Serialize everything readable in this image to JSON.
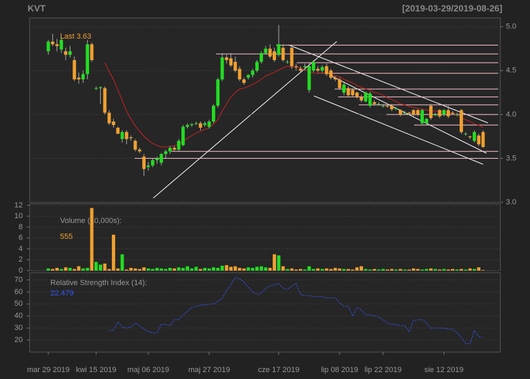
{
  "chart_data": [
    {
      "type": "candlestick",
      "title": "KVT",
      "subtitle": "[2019-03-29/2019-08-26]",
      "annotation": "Last 3.63",
      "up_color": "#22dd22",
      "down_color": "#f0a030",
      "open": [
        4.72,
        4.83,
        4.8,
        4.74,
        4.72,
        4.68,
        4.62,
        4.42,
        4.4,
        4.46,
        4.8,
        4.3,
        4.3,
        4.3,
        4.02,
        3.92,
        3.85,
        3.72,
        3.8,
        3.74,
        3.7,
        3.6,
        3.52,
        3.4,
        3.42,
        3.48,
        3.45,
        3.55,
        3.58,
        3.62,
        3.6,
        3.65,
        3.86,
        3.88,
        3.9,
        3.9,
        3.88,
        3.86,
        3.92,
        4.1,
        4.4,
        4.65,
        4.64,
        4.6,
        4.52,
        4.4,
        4.42,
        4.45,
        4.5,
        4.6,
        4.7,
        4.75,
        4.72,
        4.68,
        4.76,
        4.6,
        4.76,
        4.55,
        4.52,
        4.54,
        4.28,
        4.5,
        4.52,
        4.5,
        4.55,
        4.5,
        4.42,
        4.4,
        4.25,
        4.3,
        4.28,
        4.25,
        4.2,
        4.15,
        4.1,
        4.14,
        4.12,
        4.1,
        4.1,
        4.1,
        4.07,
        4.05,
        4.02,
        4.02,
        4.05,
        4.05,
        3.9,
        3.9,
        4.1,
        4.0,
        4.05,
        4.0,
        4.05,
        4.02,
        4.0,
        4.05,
        3.78,
        3.75,
        3.7,
        3.76,
        3.8
      ],
      "high": [
        4.85,
        4.92,
        4.86,
        4.88,
        4.76,
        4.78,
        4.66,
        4.48,
        4.5,
        4.85,
        4.82,
        4.32,
        4.32,
        4.32,
        4.05,
        3.95,
        3.86,
        3.82,
        3.82,
        3.76,
        3.72,
        3.62,
        3.55,
        3.46,
        3.5,
        3.52,
        3.56,
        3.6,
        3.64,
        3.64,
        3.72,
        3.88,
        3.9,
        3.9,
        3.92,
        3.92,
        3.92,
        3.94,
        4.12,
        4.42,
        4.7,
        4.68,
        4.7,
        4.66,
        4.55,
        4.42,
        4.46,
        4.52,
        4.62,
        4.72,
        4.78,
        4.8,
        4.76,
        5.02,
        4.8,
        4.62,
        4.78,
        4.58,
        4.55,
        4.58,
        4.58,
        4.62,
        4.55,
        4.56,
        4.58,
        4.52,
        4.44,
        4.42,
        4.36,
        4.32,
        4.3,
        4.26,
        4.22,
        4.26,
        4.26,
        4.16,
        4.14,
        4.12,
        4.12,
        4.12,
        4.08,
        4.06,
        4.04,
        4.03,
        4.06,
        4.06,
        4.06,
        3.96,
        4.12,
        4.02,
        4.06,
        4.06,
        4.1,
        4.04,
        4.02,
        4.06,
        3.8,
        3.76,
        3.82,
        3.78,
        3.82
      ],
      "low": [
        4.68,
        4.78,
        4.72,
        4.7,
        4.62,
        4.65,
        4.38,
        4.35,
        4.36,
        4.4,
        4.6,
        4.28,
        4.12,
        4.0,
        3.88,
        3.85,
        3.78,
        3.68,
        3.66,
        3.7,
        3.58,
        3.56,
        3.3,
        3.36,
        3.4,
        3.44,
        3.42,
        3.5,
        3.55,
        3.58,
        3.58,
        3.64,
        3.84,
        3.86,
        3.88,
        3.82,
        3.86,
        3.84,
        3.9,
        4.08,
        4.38,
        4.58,
        4.54,
        4.48,
        4.38,
        4.34,
        4.4,
        4.42,
        4.48,
        4.58,
        4.68,
        4.64,
        4.6,
        4.66,
        4.6,
        4.58,
        4.52,
        4.5,
        4.48,
        4.5,
        4.25,
        4.48,
        4.48,
        4.48,
        4.44,
        4.4,
        4.38,
        4.28,
        4.22,
        4.2,
        4.2,
        4.18,
        4.14,
        4.14,
        4.08,
        4.1,
        4.1,
        4.08,
        4.08,
        4.04,
        4.05,
        3.98,
        4.0,
        4.0,
        3.98,
        3.98,
        3.88,
        3.88,
        3.94,
        3.98,
        3.96,
        3.98,
        3.96,
        4.0,
        3.98,
        3.78,
        3.76,
        3.72,
        3.68,
        3.64,
        3.62
      ],
      "close": [
        4.83,
        4.8,
        4.78,
        4.85,
        4.68,
        4.72,
        4.4,
        4.4,
        4.46,
        4.8,
        4.62,
        4.3,
        4.31,
        4.02,
        3.9,
        3.88,
        3.78,
        3.8,
        3.72,
        3.73,
        3.6,
        3.58,
        3.38,
        3.42,
        3.48,
        3.5,
        3.55,
        3.58,
        3.62,
        3.6,
        3.7,
        3.86,
        3.88,
        3.89,
        3.9,
        3.85,
        3.9,
        3.92,
        4.1,
        4.4,
        4.65,
        4.62,
        4.56,
        4.5,
        4.4,
        4.36,
        4.45,
        4.5,
        4.6,
        4.7,
        4.75,
        4.66,
        4.62,
        4.8,
        4.62,
        4.6,
        4.55,
        4.54,
        4.5,
        4.55,
        4.55,
        4.6,
        4.5,
        4.54,
        4.46,
        4.42,
        4.4,
        4.3,
        4.34,
        4.22,
        4.22,
        4.2,
        4.16,
        4.25,
        4.24,
        4.12,
        4.12,
        4.1,
        4.09,
        4.06,
        4.07,
        4.0,
        4.02,
        4.01,
        4.0,
        4.0,
        4.05,
        3.95,
        3.96,
        4.0,
        3.98,
        4.05,
        3.98,
        4.01,
        4.0,
        3.8,
        3.78,
        3.74,
        3.8,
        3.66,
        3.63
      ],
      "sma": {
        "color": "#cc2222",
        "values": [
          null,
          null,
          null,
          null,
          null,
          null,
          null,
          null,
          null,
          null,
          null,
          null,
          null,
          4.59,
          4.49,
          4.4,
          4.28,
          4.16,
          4.04,
          3.95,
          3.87,
          3.81,
          3.75,
          3.71,
          3.67,
          3.65,
          3.63,
          3.63,
          3.64,
          3.64,
          3.67,
          3.69,
          3.73,
          3.76,
          3.79,
          3.81,
          3.83,
          3.85,
          3.89,
          3.94,
          4.04,
          4.12,
          4.2,
          4.25,
          4.29,
          4.3,
          4.32,
          4.34,
          4.37,
          4.4,
          4.44,
          4.46,
          4.48,
          4.51,
          4.53,
          4.55,
          4.54,
          4.54,
          4.53,
          4.51,
          4.49,
          4.47,
          4.47,
          4.47,
          4.47,
          4.46,
          4.44,
          4.43,
          4.4,
          4.38,
          4.36,
          4.33,
          4.31,
          4.29,
          4.28,
          4.25,
          4.24,
          4.22,
          4.19,
          4.17,
          4.15,
          4.12,
          4.11,
          4.09,
          4.08,
          4.07,
          4.06,
          4.05,
          4.04,
          4.04,
          4.04,
          4.03,
          4.03,
          4.01,
          4.0,
          3.96,
          3.94,
          3.92,
          3.89,
          3.88,
          3.85
        ]
      },
      "levels": {
        "color": "#ffc8d0",
        "values": [
          4.79,
          4.69,
          4.59,
          4.47,
          4.29,
          4.2,
          4.11,
          4.0,
          3.88,
          3.58,
          3.5
        ]
      },
      "ylim": [
        3,
        5.1
      ],
      "yticks": [
        {
          "value": 3,
          "label": "3.0"
        },
        3.5,
        {
          "value": 4,
          "label": "4.0"
        },
        4.5,
        {
          "value": 5,
          "label": "5.0"
        }
      ],
      "grid": true
    },
    {
      "type": "bar",
      "title": "Volume (10,000s):",
      "annotation": "555",
      "values": [
        0.4,
        0.3,
        0.5,
        0.3,
        0.6,
        0.5,
        0.3,
        0.8,
        0.4,
        0.5,
        11.5,
        1.6,
        1.1,
        1.3,
        0.3,
        6.6,
        0.4,
        3.0,
        0.2,
        0.5,
        0.4,
        0.3,
        0.6,
        0.4,
        0.3,
        0.5,
        0.4,
        0.3,
        0.5,
        0.4,
        0.6,
        0.5,
        0.8,
        0.4,
        0.7,
        0.3,
        0.5,
        0.4,
        0.6,
        0.5,
        0.9,
        1.0,
        0.7,
        0.8,
        0.5,
        0.4,
        0.6,
        0.5,
        0.7,
        0.8,
        0.6,
        0.5,
        3.0,
        2.8,
        0.8,
        0.3,
        0.4,
        0.2,
        0.3,
        0.2,
        0.8,
        0.3,
        0.4,
        0.3,
        0.4,
        0.3,
        0.5,
        0.4,
        0.3,
        0.3,
        0.2,
        0.6,
        0.8,
        0.3,
        0.2,
        0.3,
        0.2,
        0.3,
        0.2,
        0.3,
        0.2,
        0.3,
        0.2,
        0.2,
        0.4,
        0.3,
        0.2,
        0.3,
        0.4,
        0.3,
        0.2,
        0.3,
        0.2,
        0.3,
        0.2,
        0.3,
        0.2,
        0.4,
        0.3,
        0.6,
        0.1
      ],
      "ylim": [
        0,
        12.3
      ],
      "yticks": [
        0,
        2,
        4,
        6,
        8,
        10,
        12
      ],
      "grid": true
    },
    {
      "type": "line",
      "title": "Relative Strength Index (14):",
      "annotation": "22.479",
      "color": "#3355ff",
      "categories": [
        "mar 29 2019",
        null,
        null,
        null,
        null,
        null,
        null,
        null,
        null,
        null,
        null,
        "kwi 15 2019",
        null,
        null,
        null,
        null,
        null,
        null,
        null,
        null,
        null,
        null,
        null,
        "maj 06 2019",
        null,
        null,
        null,
        null,
        null,
        null,
        null,
        null,
        null,
        null,
        null,
        null,
        null,
        "maj 27 2019",
        null,
        null,
        null,
        null,
        null,
        null,
        null,
        null,
        null,
        null,
        null,
        null,
        null,
        null,
        null,
        "cze 17 2019",
        null,
        null,
        null,
        null,
        null,
        null,
        null,
        null,
        null,
        null,
        null,
        null,
        null,
        "lip 08 2019",
        null,
        null,
        null,
        null,
        null,
        null,
        null,
        null,
        null,
        "lip 22 2019",
        null,
        null,
        null,
        null,
        null,
        null,
        null,
        null,
        null,
        null,
        null,
        null,
        null,
        "sie 12 2019",
        null,
        null,
        null,
        null,
        null,
        null,
        null,
        null,
        null
      ],
      "values": [
        null,
        null,
        null,
        null,
        null,
        null,
        null,
        null,
        null,
        null,
        null,
        null,
        null,
        null,
        28,
        28,
        35,
        31,
        30,
        31,
        34,
        32,
        29,
        27,
        26,
        26,
        33,
        33,
        32,
        37,
        37,
        41,
        44,
        47,
        48,
        49,
        49,
        50,
        50,
        52,
        55,
        61,
        66,
        72,
        71,
        68,
        64,
        60,
        58,
        59,
        63,
        65,
        66,
        67,
        63,
        62,
        65,
        67,
        58,
        57,
        57,
        56,
        56,
        56,
        55,
        55,
        55,
        51,
        48,
        48,
        40,
        47,
        45,
        41,
        41,
        40,
        39,
        37,
        34,
        33,
        33,
        32,
        32,
        27,
        36,
        37,
        37,
        34,
        30,
        30,
        30,
        30,
        29,
        29,
        26,
        22,
        17,
        17,
        28,
        23,
        22
      ],
      "ylim": [
        10,
        76
      ],
      "yticks": [
        20,
        30,
        40,
        50,
        60,
        70
      ],
      "grid": true
    }
  ]
}
